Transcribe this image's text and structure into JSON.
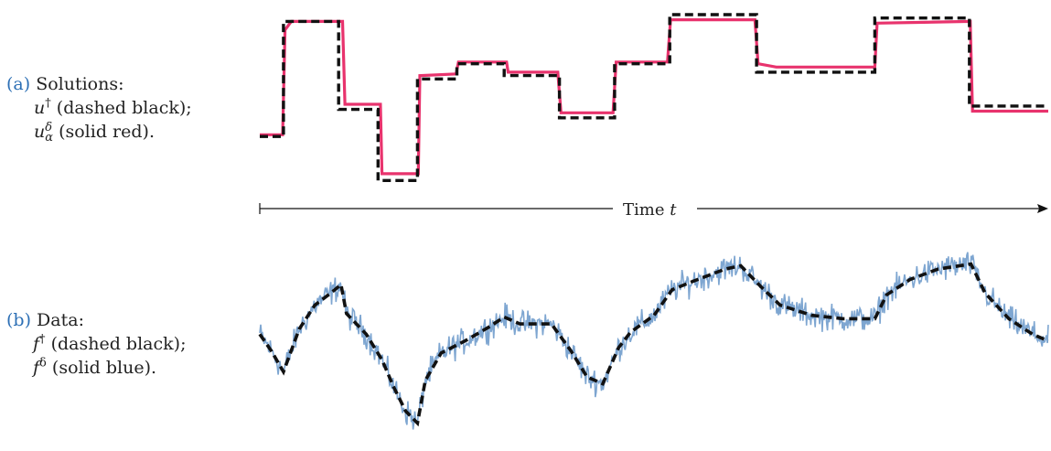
{
  "captions": {
    "a": {
      "tag": "(a)",
      "title": "Solutions:",
      "line1_symbol": "u",
      "line1_sup": "†",
      "line1_text": "(dashed black);",
      "line2_symbol": "u",
      "line2_sup": "δ",
      "line2_sub": "α",
      "line2_text": "(solid red)."
    },
    "b": {
      "tag": "(b)",
      "title": "Data:",
      "line1_symbol": "f",
      "line1_sup": "†",
      "line1_text": "(dashed black);",
      "line2_symbol": "f",
      "line2_sup": "δ",
      "line2_text": "(solid blue)."
    }
  },
  "axis": {
    "label": "Time",
    "symbol": "t"
  },
  "colors": {
    "red": "#e8336d",
    "blue": "#7ea6d1",
    "black": "#111111",
    "caption_tag": "#2c6fb5"
  },
  "chart_data": [
    {
      "type": "line",
      "xlim": [
        0,
        100
      ],
      "ylim": [
        0,
        10
      ],
      "series": [
        {
          "values": [
            [
              0,
              2.8
            ],
            [
              3,
              2.8
            ],
            [
              3,
              9.6
            ],
            [
              10,
              9.6
            ],
            [
              10,
              4.4
            ],
            [
              15,
              4.4
            ],
            [
              15,
              0.2
            ],
            [
              20,
              0.2
            ],
            [
              20,
              6.2
            ],
            [
              25,
              6.2
            ],
            [
              25,
              7.1
            ],
            [
              31,
              7.1
            ],
            [
              31,
              6.4
            ],
            [
              38,
              6.4
            ],
            [
              38,
              3.9
            ],
            [
              45,
              3.9
            ],
            [
              45,
              7.1
            ],
            [
              52,
              7.1
            ],
            [
              52,
              10
            ],
            [
              63,
              10
            ],
            [
              63,
              6.6
            ],
            [
              78,
              6.6
            ],
            [
              78,
              9.8
            ],
            [
              90,
              9.8
            ],
            [
              90,
              4.6
            ],
            [
              100,
              4.6
            ]
          ]
        },
        {
          "values": [
            [
              0,
              2.9
            ],
            [
              2.9,
              2.9
            ],
            [
              3.2,
              9.1
            ],
            [
              4,
              9.6
            ],
            [
              10.5,
              9.6
            ],
            [
              10.8,
              4.7
            ],
            [
              15.3,
              4.7
            ],
            [
              15.5,
              0.6
            ],
            [
              20.1,
              0.6
            ],
            [
              20.3,
              6.4
            ],
            [
              24.9,
              6.5
            ],
            [
              25.2,
              7.2
            ],
            [
              31.3,
              7.2
            ],
            [
              31.5,
              6.6
            ],
            [
              37.8,
              6.6
            ],
            [
              38.2,
              4.2
            ],
            [
              44.8,
              4.2
            ],
            [
              45.2,
              7.2
            ],
            [
              51.7,
              7.2
            ],
            [
              52.1,
              9.7
            ],
            [
              62.8,
              9.7
            ],
            [
              63.2,
              7.1
            ],
            [
              65.5,
              6.9
            ],
            [
              78,
              6.9
            ],
            [
              78.3,
              9.5
            ],
            [
              90.1,
              9.6
            ],
            [
              90.4,
              4.3
            ],
            [
              100,
              4.3
            ]
          ]
        }
      ]
    },
    {
      "type": "line",
      "xlim": [
        0,
        100
      ],
      "ylim": [
        0,
        10
      ],
      "series": [
        {
          "values": [
            [
              0,
              5.6
            ],
            [
              1.5,
              4.6
            ],
            [
              3,
              3.4
            ],
            [
              5,
              5.9
            ],
            [
              7,
              7.3
            ],
            [
              9,
              8
            ],
            [
              10.3,
              8.5
            ],
            [
              11,
              6.8
            ],
            [
              13.5,
              5.6
            ],
            [
              15.5,
              4.1
            ],
            [
              17,
              2.5
            ],
            [
              18.5,
              1.1
            ],
            [
              20,
              0.4
            ],
            [
              21,
              2.9
            ],
            [
              23,
              4.5
            ],
            [
              26,
              5.2
            ],
            [
              29,
              6
            ],
            [
              31,
              6.6
            ],
            [
              33,
              6.2
            ],
            [
              37,
              6.2
            ],
            [
              39.5,
              4.6
            ],
            [
              41.5,
              3.1
            ],
            [
              43.5,
              2.7
            ],
            [
              45.5,
              4.8
            ],
            [
              47,
              5.7
            ],
            [
              50,
              6.7
            ],
            [
              52.3,
              8.2
            ],
            [
              55,
              8.7
            ],
            [
              59,
              9.4
            ],
            [
              61,
              9.6
            ],
            [
              63.5,
              8.4
            ],
            [
              66,
              7.3
            ],
            [
              70,
              6.7
            ],
            [
              74,
              6.5
            ],
            [
              78,
              6.5
            ],
            [
              79.5,
              7.9
            ],
            [
              82.5,
              8.8
            ],
            [
              86,
              9.4
            ],
            [
              90.2,
              9.7
            ],
            [
              92,
              8
            ],
            [
              95,
              6.5
            ],
            [
              98,
              5.6
            ],
            [
              100,
              5.2
            ]
          ]
        },
        {
          "values": [
            [
              0,
              5.6
            ],
            [
              1.5,
              4.6
            ],
            [
              3,
              3.4
            ],
            [
              5,
              5.9
            ],
            [
              7,
              7.3
            ],
            [
              9,
              8
            ],
            [
              10.3,
              8.5
            ],
            [
              11,
              6.8
            ],
            [
              13.5,
              5.6
            ],
            [
              15.5,
              4.1
            ],
            [
              17,
              2.5
            ],
            [
              18.5,
              1.1
            ],
            [
              20,
              0.4
            ],
            [
              21,
              2.9
            ],
            [
              23,
              4.5
            ],
            [
              26,
              5.2
            ],
            [
              29,
              6
            ],
            [
              31,
              6.6
            ],
            [
              33,
              6.2
            ],
            [
              37,
              6.2
            ],
            [
              39.5,
              4.6
            ],
            [
              41.5,
              3.1
            ],
            [
              43.5,
              2.7
            ],
            [
              45.5,
              4.8
            ],
            [
              47,
              5.7
            ],
            [
              50,
              6.7
            ],
            [
              52.3,
              8.2
            ],
            [
              55,
              8.7
            ],
            [
              59,
              9.4
            ],
            [
              61,
              9.6
            ],
            [
              63.5,
              8.4
            ],
            [
              66,
              7.3
            ],
            [
              70,
              6.7
            ],
            [
              74,
              6.5
            ],
            [
              78,
              6.5
            ],
            [
              79.5,
              7.9
            ],
            [
              82.5,
              8.8
            ],
            [
              86,
              9.4
            ],
            [
              90.2,
              9.7
            ],
            [
              92,
              8
            ],
            [
              95,
              6.5
            ],
            [
              98,
              5.6
            ],
            [
              100,
              5.2
            ]
          ]
        }
      ]
    }
  ]
}
